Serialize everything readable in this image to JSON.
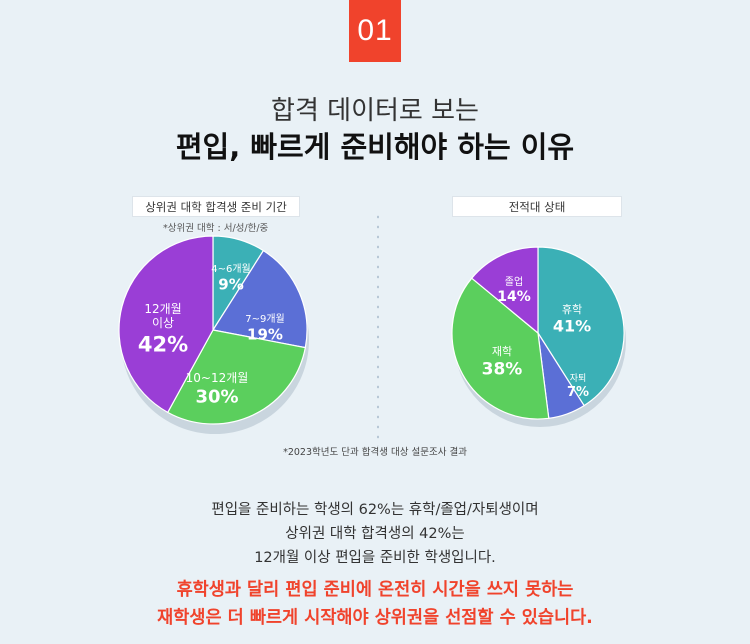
{
  "badge": "01",
  "title": {
    "line1": "합격 데이터로 보는",
    "line2": "편입, 빠르게 준비해야 하는 이유"
  },
  "left_chart": {
    "label": "상위권 대학 합격생 준비 기간",
    "note": "*상위권 대학 : 서/성/한/중"
  },
  "right_chart": {
    "label": "전적대 상태"
  },
  "survey_note": "*2023학년도 단과 합격생 대상 설문조사 결과",
  "body": {
    "line1": "편입을 준비하는 학생의 62%는 휴학/졸업/자퇴생이며",
    "line2": "상위권 대학 합격생의 42%는",
    "line3": "12개월 이상 편입을 준비한 학생입니다."
  },
  "highlight": {
    "line1": "휴학생과 달리 편입 준비에 온전히 시간을 쓰지 못하는",
    "line2": "재학생은 더 빠르게 시작해야 상위권을 선점할 수 있습니다."
  },
  "chart_data": [
    {
      "type": "pie",
      "title": "상위권 대학 합격생 준비 기간",
      "categories": [
        "4~6개월",
        "7~9개월",
        "10~12개월",
        "12개월 이상"
      ],
      "values": [
        9,
        19,
        30,
        42
      ],
      "value_labels": [
        "9%",
        "19%",
        "30%",
        "42%"
      ],
      "colors": [
        "#3bb0b6",
        "#5b6fd6",
        "#5bcf5d",
        "#9a3ed6"
      ]
    },
    {
      "type": "pie",
      "title": "전적대 상태",
      "categories": [
        "휴학",
        "자퇴",
        "재학",
        "졸업"
      ],
      "values": [
        41,
        7,
        38,
        14
      ],
      "value_labels": [
        "41%",
        "7%",
        "38%",
        "14%"
      ],
      "colors": [
        "#3bb0b6",
        "#5b6fd6",
        "#5bcf5d",
        "#9a3ed6"
      ]
    }
  ]
}
